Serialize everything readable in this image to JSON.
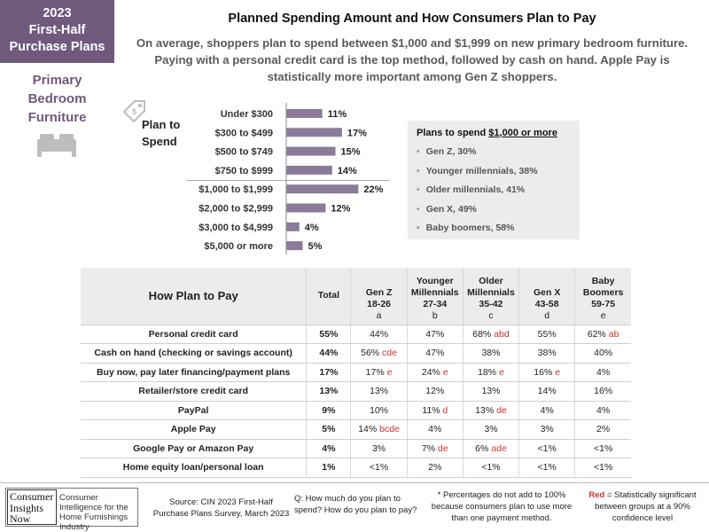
{
  "badge": {
    "line1": "2023",
    "line2": "First-Half",
    "line3": "Purchase Plans"
  },
  "category": {
    "line1": "Primary",
    "line2": "Bedroom",
    "line3": "Furniture"
  },
  "title": "Planned Spending Amount and How Consumers Plan to Pay",
  "subtitle": "On average, shoppers plan to spend between $1,000 and $1,999 on new primary bedroom furniture. Paying with a personal credit card is the top method, followed by cash on hand.  Apple Pay is statistically more important among Gen Z shoppers.",
  "plan_label": {
    "line1": "Plan to",
    "line2": "Spend"
  },
  "chart_data": {
    "type": "bar",
    "orientation": "horizontal",
    "categories": [
      "Under $300",
      "$300 to $499",
      "$500 to $749",
      "$750 to $999",
      "$1,000 to $1,999",
      "$2,000 to $2,999",
      "$3,000 to $4,999",
      "$5,000 or more"
    ],
    "values": [
      11,
      17,
      15,
      14,
      22,
      12,
      4,
      5
    ],
    "value_labels": [
      "11%",
      "17%",
      "15%",
      "14%",
      "22%",
      "12%",
      "4%",
      "5%"
    ],
    "bar_color": "#8a7b98"
  },
  "callout": {
    "title_prefix": "Plans to spend ",
    "title_underlined": "$1,000 or more",
    "items": [
      "Gen Z, 30%",
      "Younger millennials, 38%",
      "Older millennials, 41%",
      "Gen X, 49%",
      "Baby boomers, 58%"
    ]
  },
  "pay_table": {
    "header": {
      "label": "How Plan to Pay",
      "total": "Total",
      "cols": [
        {
          "l1": "Gen Z",
          "l2": "18-26",
          "l3": "a"
        },
        {
          "l0": "Younger",
          "l1": "Millennials",
          "l2": "27-34",
          "l3": "b"
        },
        {
          "l0": "Older",
          "l1": "Millennials",
          "l2": "35-42",
          "l3": "c"
        },
        {
          "l1": "Gen X",
          "l2": "43-58",
          "l3": "d"
        },
        {
          "l0": "Baby",
          "l1": "Boomers",
          "l2": "59-75",
          "l3": "e"
        }
      ]
    },
    "rows": [
      {
        "label": "Personal credit card",
        "total": "55%",
        "cells": [
          {
            "v": "44%",
            "s": ""
          },
          {
            "v": "47%",
            "s": ""
          },
          {
            "v": "68%",
            "s": "abd"
          },
          {
            "v": "55%",
            "s": ""
          },
          {
            "v": "62%",
            "s": "ab"
          }
        ]
      },
      {
        "label": "Cash on hand (checking or savings account)",
        "total": "44%",
        "cells": [
          {
            "v": "56%",
            "s": "cde"
          },
          {
            "v": "47%",
            "s": ""
          },
          {
            "v": "38%",
            "s": ""
          },
          {
            "v": "38%",
            "s": ""
          },
          {
            "v": "40%",
            "s": ""
          }
        ]
      },
      {
        "label": "Buy now, pay later financing/payment plans",
        "total": "17%",
        "cells": [
          {
            "v": "17%",
            "s": "e"
          },
          {
            "v": "24%",
            "s": "e"
          },
          {
            "v": "18%",
            "s": "e"
          },
          {
            "v": "16%",
            "s": "e"
          },
          {
            "v": "4%",
            "s": ""
          }
        ]
      },
      {
        "label": "Retailer/store credit card",
        "total": "13%",
        "cells": [
          {
            "v": "13%",
            "s": ""
          },
          {
            "v": "12%",
            "s": ""
          },
          {
            "v": "13%",
            "s": ""
          },
          {
            "v": "14%",
            "s": ""
          },
          {
            "v": "16%",
            "s": ""
          }
        ]
      },
      {
        "label": "PayPal",
        "total": "9%",
        "cells": [
          {
            "v": "10%",
            "s": ""
          },
          {
            "v": "11%",
            "s": "d"
          },
          {
            "v": "13%",
            "s": "de"
          },
          {
            "v": "4%",
            "s": ""
          },
          {
            "v": "4%",
            "s": ""
          }
        ]
      },
      {
        "label": "Apple Pay",
        "total": "5%",
        "cells": [
          {
            "v": "14%",
            "s": "bcde"
          },
          {
            "v": "4%",
            "s": ""
          },
          {
            "v": "3%",
            "s": ""
          },
          {
            "v": "3%",
            "s": ""
          },
          {
            "v": "2%",
            "s": ""
          }
        ]
      },
      {
        "label": "Google Pay or Amazon Pay",
        "total": "4%",
        "cells": [
          {
            "v": "3%",
            "s": ""
          },
          {
            "v": "7%",
            "s": "de"
          },
          {
            "v": "6%",
            "s": "ade"
          },
          {
            "v": "<1%",
            "s": ""
          },
          {
            "v": "<1%",
            "s": ""
          }
        ]
      },
      {
        "label": "Home equity loan/personal loan",
        "total": "1%",
        "cells": [
          {
            "v": "<1%",
            "s": ""
          },
          {
            "v": "2%",
            "s": ""
          },
          {
            "v": "<1%",
            "s": ""
          },
          {
            "v": "<1%",
            "s": ""
          },
          {
            "v": "<1%",
            "s": ""
          }
        ]
      }
    ]
  },
  "footer": {
    "logo": {
      "l1": "Consumer",
      "l2": "Insights",
      "l3": "Now"
    },
    "logo_desc": "Consumer Intelligence for the Home Furnishings Industry",
    "source": "Source: CIN 2023 First-Half Purchase Plans Survey, March 2023",
    "question": "Q: How much do you plan to spend? How do you plan to pay?",
    "note": "* Percentages do not add to 100% because consumers plan to use more than one payment method.",
    "legend_red": "Red",
    "legend_text": " = Statistically significant between  groups at a 90% confidence level"
  },
  "colors": {
    "accent": "#6f5a7e",
    "significant": "#d0312d",
    "panel": "#ececec"
  }
}
